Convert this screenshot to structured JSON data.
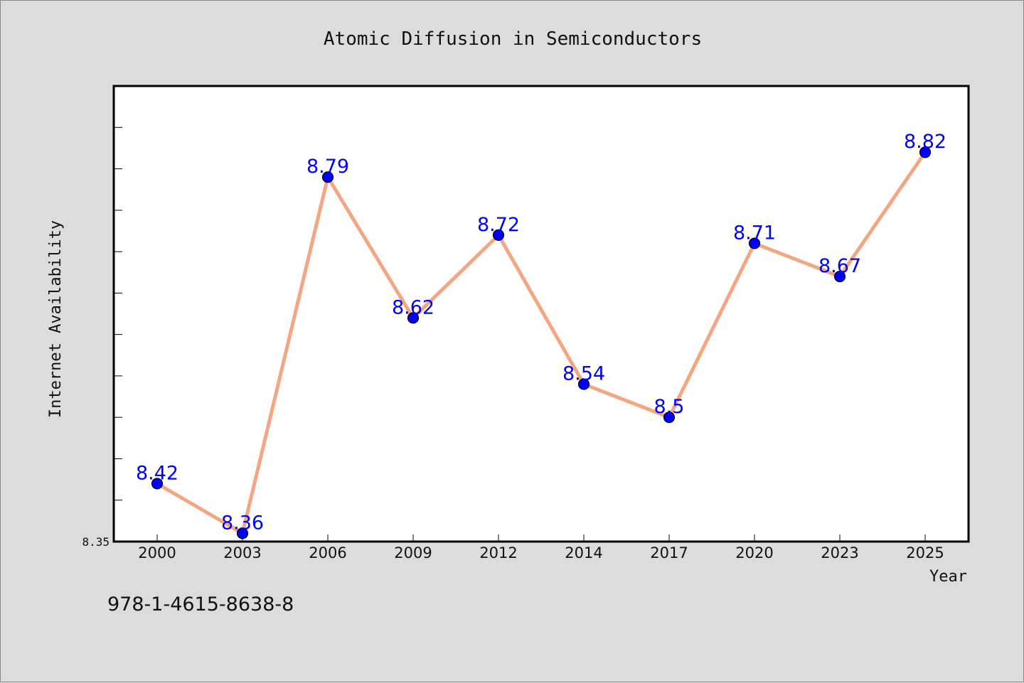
{
  "isbn": "978-1-4615-8638-8",
  "chart_data": {
    "type": "line",
    "title": "Atomic Diffusion in Semiconductors",
    "xlabel": "Year",
    "ylabel": "Internet Availability",
    "categories": [
      "2000",
      "2003",
      "2006",
      "2009",
      "2012",
      "2014",
      "2017",
      "2020",
      "2023",
      "2025"
    ],
    "series": [
      {
        "values": [
          8.42,
          8.36,
          8.79,
          8.62,
          8.72,
          8.54,
          8.5,
          8.71,
          8.67,
          8.82
        ]
      }
    ],
    "data_labels": [
      "8.42",
      "8.36",
      "8.79",
      "8.62",
      "8.72",
      "8.54",
      "8.5",
      "8.71",
      "8.67",
      "8.82"
    ],
    "ylim": [
      8.35,
      8.9
    ],
    "y_tick_labels": [
      "8.35"
    ],
    "grid": false,
    "line_color": "#f4a582",
    "marker_color": "#0000ff",
    "label_color": "#0000ff",
    "plot_background": "#ffffff",
    "page_background": "#dcdcdc"
  }
}
